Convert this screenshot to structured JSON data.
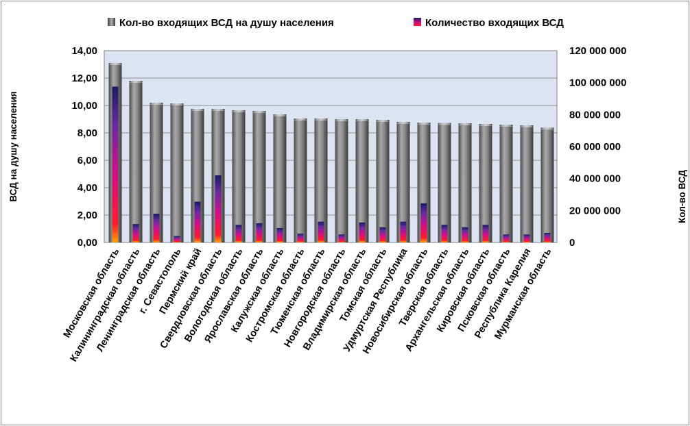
{
  "chart_data": {
    "type": "bar",
    "categories": [
      "Московская область",
      "Калининградская область",
      "Ленинградская область",
      "г. Севастополь",
      "Пермский край",
      "Свердловская область",
      "Вологодская область",
      "Ярославская область",
      "Калужская область",
      "Костромская область",
      "Тюменская область",
      "Новгородская область",
      "Владимирская область",
      "Томская область",
      "Удмуртская Республика",
      "Новосибирская область",
      "Тверская область",
      "Архангельская область",
      "Кировская область",
      "Псковская область",
      "Республика Карелия",
      "Мурманская область"
    ],
    "series": [
      {
        "name": "Кол-во входящих ВСД на душу населения",
        "axis": "left",
        "values": [
          13.1,
          11.8,
          10.2,
          10.15,
          9.75,
          9.75,
          9.65,
          9.6,
          9.35,
          9.05,
          9.05,
          9.0,
          9.0,
          8.95,
          8.8,
          8.75,
          8.72,
          8.7,
          8.65,
          8.6,
          8.55,
          8.38
        ]
      },
      {
        "name": "Количество входящих ВСД",
        "axis": "right",
        "values": [
          97500000,
          11500000,
          18000000,
          4000000,
          25500000,
          42000000,
          11000000,
          12000000,
          9000000,
          5500000,
          13000000,
          5000000,
          12500000,
          9500000,
          13000000,
          24500000,
          11000000,
          9500000,
          11000000,
          5000000,
          5000000,
          6000000
        ]
      }
    ],
    "ylabel": "ВСД на душу населения",
    "y2label": "Кол-во ВСД",
    "ylim": [
      0,
      14
    ],
    "y2lim": [
      0,
      120000000
    ],
    "yticks": [
      "0,00",
      "2,00",
      "4,00",
      "6,00",
      "8,00",
      "10,00",
      "12,00",
      "14,00"
    ],
    "y2ticks": [
      "0",
      "20 000 000",
      "40 000 000",
      "60 000 000",
      "80 000 000",
      "100 000 000",
      "120 000 000"
    ],
    "grid": true,
    "legend_position": "top"
  },
  "colors": {
    "plot_background": "#dce3f2",
    "per_capita_bar": "#7a7a7a",
    "per_capita_bar_top": "#a6a6a6",
    "count_bar_bottom": "#ff8a00",
    "count_bar_mid": "#e0007a",
    "count_bar_top": "#1c1f66",
    "gridline": "#7f7f7f"
  }
}
